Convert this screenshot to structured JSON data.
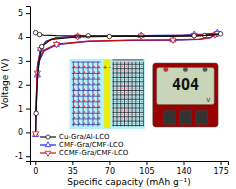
{
  "chart_data": {
    "type": "line",
    "xlabel": "Specific capacity (mAh g⁻¹)",
    "ylabel": "Voltage (V)",
    "xlim": [
      -5,
      182
    ],
    "ylim": [
      -1.2,
      5.3
    ],
    "xticks": [
      0,
      35,
      70,
      105,
      140,
      175
    ],
    "yticks": [
      -1,
      0,
      1,
      2,
      3,
      4,
      5
    ],
    "grid": false,
    "legend": "lower left",
    "series": [
      {
        "name": "Cu-Gra/Al-LCO",
        "color": "#111111",
        "marker": "circle",
        "x": [
          0.3,
          1,
          2,
          4,
          8,
          20,
          50,
          90,
          130,
          160,
          170,
          175
        ],
        "values": [
          4.18,
          4.15,
          4.12,
          4.1,
          4.08,
          4.06,
          4.05,
          4.04,
          4.04,
          4.06,
          4.1,
          4.15
        ]
      },
      {
        "name": "Cu-Gra/Al-LCO",
        "color": "#111111",
        "marker": "circle",
        "x": [
          175,
          170,
          160,
          150,
          130,
          100,
          70,
          40,
          15,
          6,
          3,
          1.5,
          0.8,
          0.3
        ],
        "values": [
          4.13,
          4.1,
          4.07,
          4.05,
          4.04,
          4.03,
          4.02,
          4.0,
          3.9,
          3.6,
          2.8,
          1.8,
          0.8,
          0.05
        ]
      },
      {
        "name": "CMF-Gra/CMF-LCO",
        "color": "#1a1aff",
        "marker": "triangle-up",
        "x": [
          0.3,
          0.5,
          1,
          2,
          4,
          8,
          20,
          50,
          90,
          130,
          155,
          165,
          170,
          172
        ],
        "values": [
          -0.1,
          0.5,
          1.5,
          2.4,
          3.0,
          3.4,
          3.68,
          3.82,
          3.86,
          3.87,
          3.9,
          3.96,
          4.1,
          4.2
        ]
      },
      {
        "name": "CMF-Gra/CMF-LCO",
        "color": "#1a1aff",
        "marker": "triangle-up",
        "x": [
          172,
          168,
          160,
          150,
          140,
          120,
          100,
          80,
          60,
          40,
          20,
          10,
          5,
          2,
          0.8
        ],
        "values": [
          4.18,
          4.15,
          4.12,
          4.1,
          4.08,
          4.07,
          4.06,
          4.05,
          4.04,
          4.03,
          3.97,
          3.82,
          3.5,
          2.8,
          0.9
        ]
      },
      {
        "name": "CCMF-Gra/CMF-LCO",
        "color": "#cc1111",
        "marker": "triangle-down",
        "x": [
          0.3,
          0.5,
          1,
          2,
          4,
          8,
          20,
          50,
          90,
          130,
          155,
          165,
          170,
          172
        ],
        "values": [
          -0.05,
          0.6,
          1.6,
          2.5,
          3.1,
          3.45,
          3.7,
          3.83,
          3.87,
          3.88,
          3.91,
          3.97,
          4.1,
          4.18
        ]
      },
      {
        "name": "CCMF-Gra/CMF-LCO",
        "color": "#cc1111",
        "marker": "triangle-down",
        "x": [
          172,
          168,
          160,
          150,
          140,
          120,
          100,
          80,
          60,
          40,
          20,
          10,
          5,
          2,
          0.8
        ],
        "values": [
          4.16,
          4.13,
          4.1,
          4.08,
          4.07,
          4.06,
          4.05,
          4.04,
          4.03,
          4.02,
          3.96,
          3.8,
          3.48,
          2.75,
          0.85
        ]
      }
    ],
    "annotations": [
      "+",
      "-",
      "4O4",
      "V"
    ]
  }
}
